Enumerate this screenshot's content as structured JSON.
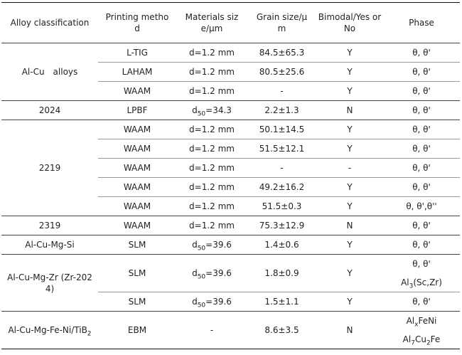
{
  "headers": {
    "alloy": "Alloy classification",
    "method_l1": "Printing metho",
    "method_l2": "d",
    "size_l1": "Materials siz",
    "size_l2": "e/μm",
    "grain_l1": "Grain size/μ",
    "grain_l2": "m",
    "bimodal_l1": "Bimodal/Yes or",
    "bimodal_l2": "No",
    "phase": "Phase"
  },
  "groups": {
    "alcu": "Al-Cu　alloys",
    "g2024": "2024",
    "g2219": "2219",
    "g2319": "2319",
    "alcumgsi": "Al-Cu-Mg-Si",
    "alcumgzr_l1": "Al-Cu-Mg-Zr (Zr-202",
    "alcumgzr_l2": "4)",
    "alcumgfeni": "Al-Cu-Mg-Fe-Ni/TiB",
    "alcumgfeni_sub": "2"
  },
  "rows": [
    {
      "method": "L-TIG",
      "size": "d=1.2 mm",
      "grain": "84.5±65.3",
      "bimodal": "Y",
      "phase": "θ, θ'"
    },
    {
      "method": "LAHAM",
      "size": "d=1.2 mm",
      "grain": "80.5±25.6",
      "bimodal": "Y",
      "phase": "θ, θ'"
    },
    {
      "method": "WAAM",
      "size": "d=1.2 mm",
      "grain": "-",
      "bimodal": "Y",
      "phase": "θ, θ'"
    },
    {
      "method": "LPBF",
      "size_pre": "d",
      "size_sub": "50",
      "size_post": "=34.3",
      "grain": "2.2±1.3",
      "bimodal": "N",
      "phase": "θ, θ'"
    },
    {
      "method": "WAAM",
      "size": "d=1.2 mm",
      "grain": "50.1±14.5",
      "bimodal": "Y",
      "phase": "θ, θ'"
    },
    {
      "method": "WAAM",
      "size": "d=1.2 mm",
      "grain": "51.5±12.1",
      "bimodal": "Y",
      "phase": "θ, θ'"
    },
    {
      "method": "WAAM",
      "size": "d=1.2 mm",
      "grain": "-",
      "bimodal": "-",
      "phase": "θ, θ'"
    },
    {
      "method": "WAAM",
      "size": "d=1.2 mm",
      "grain": "49.2±16.2",
      "bimodal": "Y",
      "phase": "θ, θ'"
    },
    {
      "method": "WAAM",
      "size": "d=1.2 mm",
      "grain": "51.5±0.3",
      "bimodal": "Y",
      "phase": "θ, θ',θ''"
    },
    {
      "method": "WAAM",
      "size": "d=1.2 mm",
      "grain": "75.3±12.9",
      "bimodal": "N",
      "phase": "θ, θ'"
    },
    {
      "method": "SLM",
      "size_pre": "d",
      "size_sub": "50",
      "size_post": "=39.6",
      "grain": "1.4±0.6",
      "bimodal": "Y",
      "phase": "θ, θ'"
    },
    {
      "method": "SLM",
      "size_pre": "d",
      "size_sub": "50",
      "size_post": "=39.6",
      "grain": "1.8±0.9",
      "bimodal": "Y",
      "phase": "θ, θ'",
      "phase2_pre": "Al",
      "phase2_sub": "3",
      "phase2_post": "(Sc,Zr)"
    },
    {
      "method": "SLM",
      "size_pre": "d",
      "size_sub": "50",
      "size_post": "=39.6",
      "grain": "1.5±1.1",
      "bimodal": "Y",
      "phase": "θ, θ'"
    },
    {
      "method": "EBM",
      "size": "-",
      "grain": "8.6±3.5",
      "bimodal": "N",
      "phase1_pre": "Al",
      "phase1_sub": "x",
      "phase1_post": "FeNi",
      "phase2_pre": "Al",
      "phase2_sub": "7",
      "phase2_mid": "Cu",
      "phase2_sub2": "2",
      "phase2_post": "Fe"
    }
  ]
}
